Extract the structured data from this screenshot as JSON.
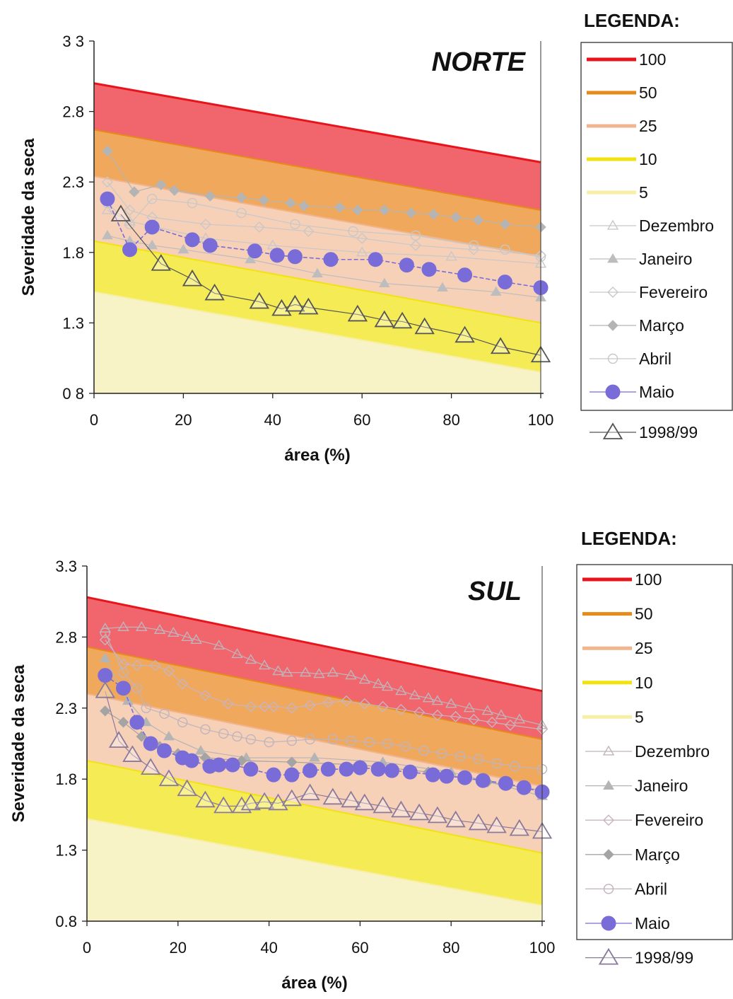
{
  "chart_data": [
    {
      "type": "line",
      "title": "NORTE",
      "xlabel": "área (%)",
      "ylabel": "Severidade da seca",
      "xlim": [
        0,
        100
      ],
      "ylim": [
        0.8,
        3.3
      ],
      "x_ticks": [
        "0",
        "20",
        "40",
        "60",
        "80",
        "100"
      ],
      "y_ticks": [
        "0 8",
        "1.3",
        "1.8",
        "2.3",
        "2.8",
        "3 3"
      ],
      "legend_title": "LEGENDA:",
      "legend": [
        "100",
        "50",
        "25",
        "10",
        "5",
        "Dezembro",
        "Janeiro",
        "Fevereiro",
        "Março",
        "Abril",
        "Maio",
        "1998/99"
      ],
      "bands": [
        {
          "name": "100",
          "color": "#e8141c",
          "fill": "#f0666c",
          "start": 3.0,
          "end": 2.44
        },
        {
          "name": "50",
          "color": "#e68a1a",
          "fill": "#f0a95c",
          "start": 2.67,
          "end": 2.1
        },
        {
          "name": "25",
          "color": "#f2b48c",
          "fill": "#f7d0b8",
          "start": 2.34,
          "end": 1.77
        },
        {
          "name": "10",
          "color": "#f2e20e",
          "fill": "#f5ec55",
          "start": 1.88,
          "end": 1.3
        },
        {
          "name": "5",
          "color": "#f7efa6",
          "fill": "#f8f3c6",
          "start": 1.52,
          "end": 0.95
        }
      ],
      "series": [
        {
          "name": "Dezembro",
          "color": "#c8c8c8",
          "marker": "triangle-open",
          "x": [
            3,
            8,
            14,
            25,
            40,
            60,
            80,
            100
          ],
          "y": [
            2.1,
            2.02,
            1.98,
            1.9,
            1.85,
            1.8,
            1.77,
            1.72
          ]
        },
        {
          "name": "Janeiro",
          "color": "#bdbdbd",
          "marker": "triangle-filled",
          "x": [
            3,
            8,
            13,
            20,
            35,
            50,
            65,
            78,
            90,
            100
          ],
          "y": [
            1.92,
            1.88,
            1.85,
            1.82,
            1.75,
            1.65,
            1.58,
            1.55,
            1.52,
            1.48
          ]
        },
        {
          "name": "Fevereiro",
          "color": "#c8c8c8",
          "marker": "diamond-open",
          "x": [
            3,
            8,
            13,
            25,
            37,
            48,
            60,
            72,
            85,
            100
          ],
          "y": [
            2.3,
            2.1,
            2.05,
            2.0,
            1.98,
            1.95,
            1.9,
            1.85,
            1.82,
            1.78
          ]
        },
        {
          "name": "Março",
          "color": "#b4b4b4",
          "marker": "diamond-filled",
          "x": [
            3,
            9,
            15,
            18,
            26,
            33,
            38,
            44,
            47,
            55,
            59,
            65,
            71,
            76,
            81,
            86,
            92,
            100
          ],
          "y": [
            2.52,
            2.23,
            2.28,
            2.24,
            2.2,
            2.19,
            2.17,
            2.15,
            2.13,
            2.12,
            2.1,
            2.1,
            2.08,
            2.07,
            2.05,
            2.03,
            2.0,
            1.98
          ]
        },
        {
          "name": "Abril",
          "color": "#c8c8c8",
          "marker": "circle-open",
          "x": [
            3,
            8,
            13,
            22,
            33,
            45,
            58,
            72,
            85,
            92,
            100
          ],
          "y": [
            2.15,
            2.0,
            2.18,
            2.15,
            2.08,
            2.0,
            1.95,
            1.92,
            1.85,
            1.82,
            1.77
          ]
        },
        {
          "name": "Maio",
          "color": "#7a6cd8",
          "marker": "circle-filled",
          "x": [
            3,
            8,
            13,
            22,
            26,
            36,
            41,
            45,
            53,
            63,
            70,
            75,
            83,
            92,
            100
          ],
          "y": [
            2.18,
            1.82,
            1.98,
            1.89,
            1.85,
            1.81,
            1.78,
            1.77,
            1.75,
            1.75,
            1.71,
            1.68,
            1.64,
            1.59,
            1.55
          ]
        },
        {
          "name": "1998/99",
          "color": "#555555",
          "marker": "triangle-open-large",
          "x": [
            6,
            15,
            22,
            27,
            37,
            42,
            45,
            48,
            59,
            65,
            69,
            74,
            83,
            91,
            100
          ],
          "y": [
            2.07,
            1.72,
            1.61,
            1.51,
            1.45,
            1.4,
            1.43,
            1.41,
            1.36,
            1.32,
            1.31,
            1.27,
            1.21,
            1.13,
            1.07
          ]
        }
      ]
    },
    {
      "type": "line",
      "title": "SUL",
      "xlabel": "área (%)",
      "ylabel": "Severidade da seca",
      "xlim": [
        0,
        100
      ],
      "ylim": [
        0.8,
        3.3
      ],
      "x_ticks": [
        "0",
        "20",
        "40",
        "60",
        "80",
        "100"
      ],
      "y_ticks": [
        "0.8",
        "1.3",
        "1.8",
        "2.3",
        "2.8",
        "3.3"
      ],
      "legend_title": "LEGENDA:",
      "legend": [
        "100",
        "50",
        "25",
        "10",
        "5",
        "Dezembro",
        "Janeiro",
        "Fevereiro",
        "Março",
        "Abril",
        "Maio",
        "1998/99"
      ],
      "bands": [
        {
          "name": "100",
          "color": "#e8141c",
          "fill": "#f0666c",
          "start": 3.08,
          "end": 2.42
        },
        {
          "name": "50",
          "color": "#e68a1a",
          "fill": "#f0a95c",
          "start": 2.73,
          "end": 2.08
        },
        {
          "name": "25",
          "color": "#f2b48c",
          "fill": "#f7d0b8",
          "start": 2.4,
          "end": 1.75
        },
        {
          "name": "10",
          "color": "#f2e20e",
          "fill": "#f5ec55",
          "start": 1.93,
          "end": 1.28
        },
        {
          "name": "5",
          "color": "#f7efa6",
          "fill": "#f8f3c6",
          "start": 1.52,
          "end": 0.91
        }
      ],
      "series": [
        {
          "name": "Dezembro",
          "color": "#c0b4bc",
          "marker": "triangle-open",
          "x": [
            4,
            8,
            12,
            16,
            19,
            22,
            24,
            29,
            33,
            36,
            39,
            42,
            44,
            48,
            51,
            54,
            58,
            61,
            64,
            66,
            69,
            72,
            75,
            77,
            80,
            84,
            88,
            91,
            95,
            100
          ],
          "y": [
            2.86,
            2.87,
            2.87,
            2.85,
            2.83,
            2.8,
            2.78,
            2.74,
            2.68,
            2.64,
            2.6,
            2.56,
            2.55,
            2.55,
            2.54,
            2.55,
            2.53,
            2.5,
            2.47,
            2.45,
            2.42,
            2.39,
            2.37,
            2.35,
            2.33,
            2.3,
            2.28,
            2.25,
            2.22,
            2.18
          ]
        },
        {
          "name": "Janeiro",
          "color": "#b4b4b4",
          "marker": "triangle-filled",
          "x": [
            4,
            9,
            13,
            18,
            25,
            35,
            50,
            65,
            80,
            100
          ],
          "y": [
            2.65,
            2.35,
            2.2,
            2.1,
            2.0,
            1.95,
            1.95,
            1.92,
            1.85,
            1.68
          ]
        },
        {
          "name": "Fevereiro",
          "color": "#c8b4c0",
          "marker": "diamond-open",
          "x": [
            4,
            8,
            11,
            15,
            18,
            21,
            26,
            31,
            36,
            39,
            41,
            45,
            49,
            53,
            57,
            61,
            65,
            69,
            73,
            77,
            81,
            85,
            89,
            93,
            100
          ],
          "y": [
            2.78,
            2.61,
            2.6,
            2.6,
            2.56,
            2.47,
            2.39,
            2.33,
            2.31,
            2.31,
            2.31,
            2.3,
            2.32,
            2.34,
            2.35,
            2.33,
            2.31,
            2.29,
            2.27,
            2.25,
            2.24,
            2.22,
            2.2,
            2.18,
            2.15
          ]
        },
        {
          "name": "Março",
          "color": "#a4a4a4",
          "marker": "diamond-filled",
          "x": [
            4,
            8,
            12,
            16,
            20,
            26,
            34,
            45,
            60,
            75,
            88,
            100
          ],
          "y": [
            2.28,
            2.2,
            2.1,
            2.03,
            1.98,
            1.95,
            1.93,
            1.92,
            1.9,
            1.85,
            1.78,
            1.72
          ]
        },
        {
          "name": "Abril",
          "color": "#c0b4bc",
          "marker": "circle-open",
          "x": [
            4,
            8,
            11,
            13,
            17,
            21,
            26,
            30,
            33,
            36,
            40,
            45,
            49,
            54,
            58,
            62,
            66,
            70,
            74,
            78,
            82,
            86,
            90,
            94,
            100
          ],
          "y": [
            2.83,
            2.55,
            2.44,
            2.3,
            2.26,
            2.2,
            2.15,
            2.12,
            2.1,
            2.08,
            2.06,
            2.07,
            2.08,
            2.08,
            2.07,
            2.06,
            2.05,
            2.03,
            2.0,
            1.98,
            1.96,
            1.94,
            1.91,
            1.89,
            1.87
          ]
        },
        {
          "name": "Maio",
          "color": "#7a6cd8",
          "marker": "circle-filled",
          "x": [
            4,
            8,
            11,
            14,
            17,
            21,
            23,
            27,
            29,
            32,
            36,
            41,
            45,
            49,
            53,
            57,
            60,
            64,
            67,
            71,
            76,
            79,
            83,
            87,
            92,
            96,
            100
          ],
          "y": [
            2.53,
            2.44,
            2.2,
            2.05,
            2.0,
            1.95,
            1.93,
            1.89,
            1.9,
            1.9,
            1.87,
            1.83,
            1.83,
            1.86,
            1.87,
            1.87,
            1.88,
            1.87,
            1.86,
            1.85,
            1.83,
            1.82,
            1.81,
            1.79,
            1.77,
            1.74,
            1.71
          ]
        },
        {
          "name": "1998/99",
          "color": "#8a7a9a",
          "marker": "triangle-open-large",
          "x": [
            4,
            7,
            10,
            14,
            18,
            22,
            26,
            30,
            34,
            36,
            39,
            42,
            45,
            49,
            54,
            58,
            61,
            65,
            69,
            73,
            77,
            81,
            86,
            90,
            95,
            100
          ],
          "y": [
            2.42,
            2.07,
            1.97,
            1.88,
            1.8,
            1.73,
            1.65,
            1.61,
            1.61,
            1.63,
            1.64,
            1.63,
            1.66,
            1.7,
            1.67,
            1.65,
            1.63,
            1.61,
            1.58,
            1.56,
            1.54,
            1.51,
            1.49,
            1.47,
            1.45,
            1.43
          ]
        }
      ]
    }
  ]
}
